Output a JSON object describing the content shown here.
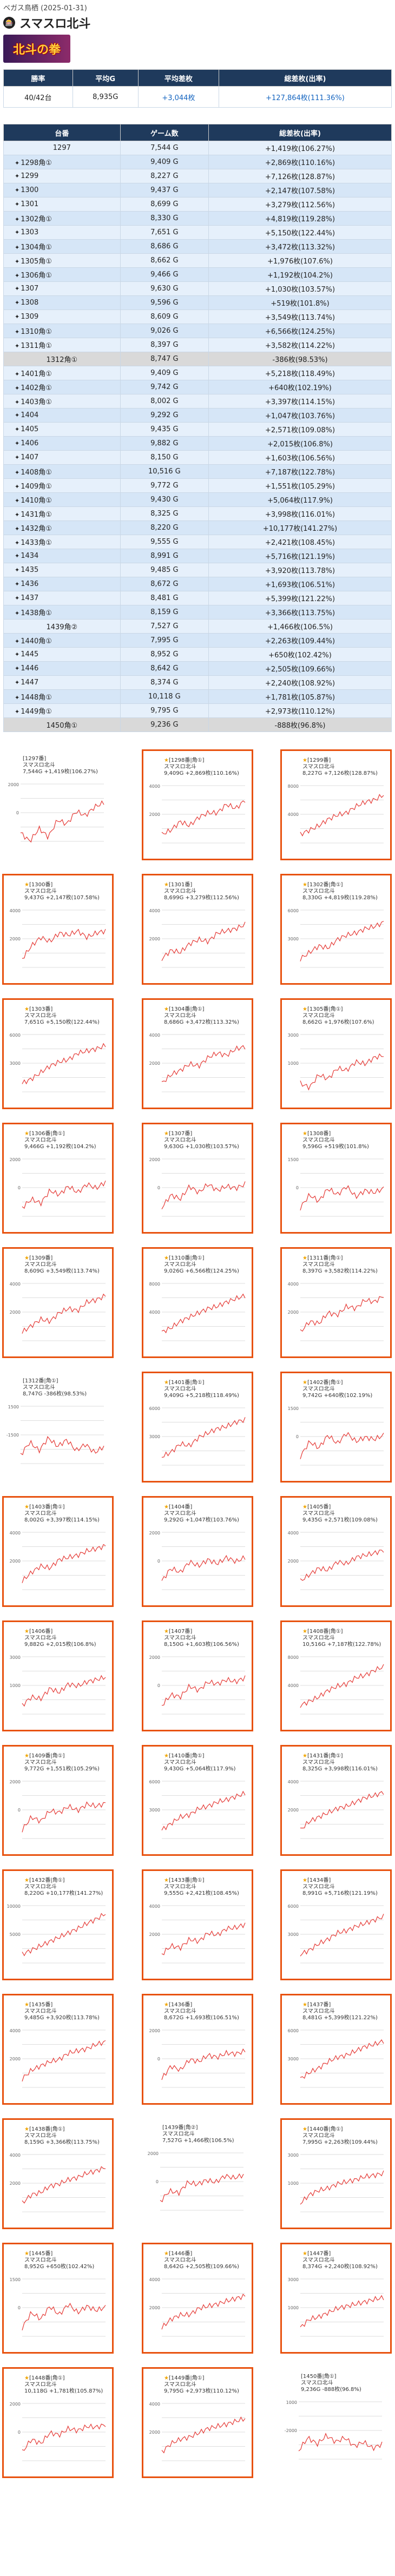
{
  "breadcrumb": "ベガス鳥栖 (2025-01-31)",
  "title_icon": "🎰",
  "title": "スマスロ北斗",
  "banner_text": "北斗の拳",
  "summary": {
    "headers": [
      "勝率",
      "平均G",
      "平均差枚",
      "総差枚(出率)"
    ],
    "row": [
      "40/42台",
      "8,935G",
      "+3,044枚",
      "+127,864枚(111.36%)"
    ]
  },
  "table": {
    "headers": [
      "台番",
      "ゲーム数",
      "総差枚(出率)"
    ],
    "rows": [
      [
        "1297",
        "7,544 G",
        "+1,419枚(106.27%)"
      ],
      [
        "1298角①",
        "9,409 G",
        "+2,869枚(110.16%)"
      ],
      [
        "1299",
        "8,227 G",
        "+7,126枚(128.87%)"
      ],
      [
        "1300",
        "9,437 G",
        "+2,147枚(107.58%)"
      ],
      [
        "1301",
        "8,699 G",
        "+3,279枚(112.56%)"
      ],
      [
        "1302角①",
        "8,330 G",
        "+4,819枚(119.28%)"
      ],
      [
        "1303",
        "7,651 G",
        "+5,150枚(122.44%)"
      ],
      [
        "1304角①",
        "8,686 G",
        "+3,472枚(113.32%)"
      ],
      [
        "1305角①",
        "8,662 G",
        "+1,976枚(107.6%)"
      ],
      [
        "1306角①",
        "9,466 G",
        "+1,192枚(104.2%)"
      ],
      [
        "1307",
        "9,630 G",
        "+1,030枚(103.57%)"
      ],
      [
        "1308",
        "9,596 G",
        "+519枚(101.8%)"
      ],
      [
        "1309",
        "8,609 G",
        "+3,549枚(113.74%)"
      ],
      [
        "1310角①",
        "9,026 G",
        "+6,566枚(124.25%)"
      ],
      [
        "1311角①",
        "8,397 G",
        "+3,582枚(114.22%)"
      ],
      [
        "1312角①",
        "8,747 G",
        "-386枚(98.53%)"
      ],
      [
        "1401角①",
        "9,409 G",
        "+5,218枚(118.49%)"
      ],
      [
        "1402角①",
        "9,742 G",
        "+640枚(102.19%)"
      ],
      [
        "1403角①",
        "8,002 G",
        "+3,397枚(114.15%)"
      ],
      [
        "1404",
        "9,292 G",
        "+1,047枚(103.76%)"
      ],
      [
        "1405",
        "9,435 G",
        "+2,571枚(109.08%)"
      ],
      [
        "1406",
        "9,882 G",
        "+2,015枚(106.8%)"
      ],
      [
        "1407",
        "8,150 G",
        "+1,603枚(106.56%)"
      ],
      [
        "1408角①",
        "10,516 G",
        "+7,187枚(122.78%)"
      ],
      [
        "1409角①",
        "9,772 G",
        "+1,551枚(105.29%)"
      ],
      [
        "1410角①",
        "9,430 G",
        "+5,064枚(117.9%)"
      ],
      [
        "1431角①",
        "8,325 G",
        "+3,998枚(116.01%)"
      ],
      [
        "1432角①",
        "8,220 G",
        "+10,177枚(141.27%)"
      ],
      [
        "1433角①",
        "9,555 G",
        "+2,421枚(108.45%)"
      ],
      [
        "1434",
        "8,991 G",
        "+5,716枚(121.19%)"
      ],
      [
        "1435",
        "9,485 G",
        "+3,920枚(113.78%)"
      ],
      [
        "1436",
        "8,672 G",
        "+1,693枚(106.51%)"
      ],
      [
        "1437",
        "8,481 G",
        "+5,399枚(121.22%)"
      ],
      [
        "1438角①",
        "8,159 G",
        "+3,366枚(113.75%)"
      ],
      [
        "1439角②",
        "7,527 G",
        "+1,466枚(106.5%)"
      ],
      [
        "1440角①",
        "7,995 G",
        "+2,263枚(109.44%)"
      ],
      [
        "1445",
        "8,952 G",
        "+650枚(102.42%)"
      ],
      [
        "1446",
        "8,642 G",
        "+2,505枚(109.66%)"
      ],
      [
        "1447",
        "8,374 G",
        "+2,240枚(108.92%)"
      ],
      [
        "1448角①",
        "10,118 G",
        "+1,781枚(105.87%)"
      ],
      [
        "1449角①",
        "9,795 G",
        "+2,973枚(110.12%)"
      ],
      [
        "1450角①",
        "9,236 G",
        "-888枚(96.8%)"
      ]
    ]
  },
  "cards": [
    {
      "title": "[1297番]",
      "name": "スマスロ北斗",
      "stat": "7,544G +1,419枚(106.27%)",
      "ymax": "2000",
      "ymid": "0",
      "trend": [
        0,
        -0.2,
        0.1,
        -0.1,
        0.3,
        0.2,
        0.5,
        0.4,
        0.6,
        0.7
      ]
    },
    {
      "title": "[1298番|角①]",
      "name": "スマスロ北斗",
      "stat": "9,409G +2,869枚(110.16%)",
      "ymax": "4000",
      "ymid": "2000",
      "trend": [
        0,
        0.1,
        0.3,
        0.2,
        0.4,
        0.5,
        0.5,
        0.7,
        0.6,
        0.8
      ]
    },
    {
      "title": "[1299番]",
      "name": "スマスロ北斗",
      "stat": "8,227G +7,126枚(128.87%)",
      "ymax": "8000",
      "ymid": "4000",
      "trend": [
        0,
        0.1,
        0.2,
        0.35,
        0.45,
        0.5,
        0.65,
        0.75,
        0.8,
        0.92
      ]
    },
    {
      "title": "[1300番]",
      "name": "スマスロ北斗",
      "stat": "9,437G +2,147枚(107.58%)",
      "ymax": "4000",
      "ymid": "2000",
      "trend": [
        0,
        0.3,
        0.5,
        0.4,
        0.6,
        0.55,
        0.65,
        0.5,
        0.6,
        0.65
      ]
    },
    {
      "title": "[1301番]",
      "name": "スマスロ北斗",
      "stat": "8,699G +3,279枚(112.56%)",
      "ymax": "4000",
      "ymid": "2000",
      "trend": [
        0,
        0.2,
        0.15,
        0.35,
        0.45,
        0.4,
        0.6,
        0.65,
        0.7,
        0.8
      ]
    },
    {
      "title": "[1302番|角①]",
      "name": "スマスロ北斗",
      "stat": "8,330G +4,819枚(119.28%)",
      "ymax": "6000",
      "ymid": "3000",
      "trend": [
        0,
        0.15,
        0.3,
        0.25,
        0.45,
        0.55,
        0.6,
        0.7,
        0.75,
        0.85
      ]
    },
    {
      "title": "[1303番]",
      "name": "スマスロ北斗",
      "stat": "7,651G +5,150枚(122.44%)",
      "ymax": "6000",
      "ymid": "3000",
      "trend": [
        0,
        0.1,
        0.25,
        0.4,
        0.5,
        0.55,
        0.7,
        0.75,
        0.8,
        0.88
      ]
    },
    {
      "title": "[1304番|角①]",
      "name": "スマスロ北斗",
      "stat": "8,686G +3,472枚(113.32%)",
      "ymax": "4000",
      "ymid": "2000",
      "trend": [
        0,
        0.2,
        0.3,
        0.45,
        0.4,
        0.6,
        0.7,
        0.65,
        0.8,
        0.85
      ]
    },
    {
      "title": "[1305番|角①]",
      "name": "スマスロ北斗",
      "stat": "8,662G +1,976枚(107.6%)",
      "ymax": "3000",
      "ymid": "1000",
      "trend": [
        0,
        -0.1,
        0.2,
        0.1,
        0.35,
        0.3,
        0.5,
        0.45,
        0.6,
        0.65
      ]
    },
    {
      "title": "[1306番|角①]",
      "name": "スマスロ北斗",
      "stat": "9,466G +1,192枚(104.2%)",
      "ymax": "2000",
      "ymid": "0",
      "trend": [
        0,
        0.2,
        0.1,
        0.4,
        0.3,
        0.5,
        0.35,
        0.55,
        0.45,
        0.6
      ]
    },
    {
      "title": "[1307番]",
      "name": "スマスロ北斗",
      "stat": "9,630G +1,030枚(103.57%)",
      "ymax": "2000",
      "ymid": "0",
      "trend": [
        0,
        0.3,
        0.2,
        0.5,
        0.35,
        0.55,
        0.4,
        0.5,
        0.45,
        0.55
      ]
    },
    {
      "title": "[1308番]",
      "name": "スマスロ北斗",
      "stat": "9,596G +519枚(101.8%)",
      "ymax": "1500",
      "ymid": "0",
      "trend": [
        0,
        0.3,
        0.15,
        0.45,
        0.3,
        0.5,
        0.25,
        0.4,
        0.35,
        0.45
      ]
    },
    {
      "title": "[1309番]",
      "name": "スマスロ北斗",
      "stat": "8,609G +3,549枚(113.74%)",
      "ymax": "4000",
      "ymid": "2000",
      "trend": [
        0,
        0.15,
        0.3,
        0.25,
        0.45,
        0.55,
        0.5,
        0.7,
        0.75,
        0.85
      ]
    },
    {
      "title": "[1310番|角①]",
      "name": "スマスロ北斗",
      "stat": "9,026G +6,566枚(124.25%)",
      "ymax": "8000",
      "ymid": "4000",
      "trend": [
        0,
        0.1,
        0.25,
        0.35,
        0.45,
        0.55,
        0.6,
        0.7,
        0.78,
        0.85
      ]
    },
    {
      "title": "[1311番|角①]",
      "name": "スマスロ北斗",
      "stat": "8,397G +3,582枚(114.22%)",
      "ymax": "4000",
      "ymid": "2000",
      "trend": [
        0,
        0.25,
        0.2,
        0.45,
        0.4,
        0.6,
        0.55,
        0.75,
        0.7,
        0.85
      ]
    },
    {
      "title": "[1312番|角①]",
      "name": "スマスロ北斗",
      "stat": "8,747G -386枚(98.53%)",
      "ymax": "1500",
      "ymid": "-1500",
      "trend": [
        0,
        0.3,
        0.1,
        0.4,
        0.2,
        0.35,
        0.1,
        0.25,
        0.05,
        0.2
      ]
    },
    {
      "title": "[1401番|角①]",
      "name": "スマスロ北斗",
      "stat": "9,409G +5,218枚(118.49%)",
      "ymax": "6000",
      "ymid": "3000",
      "trend": [
        0,
        0.1,
        0.3,
        0.25,
        0.45,
        0.55,
        0.65,
        0.7,
        0.8,
        0.86
      ]
    },
    {
      "title": "[1402番|角①]",
      "name": "スマスロ北斗",
      "stat": "9,742G +640枚(102.19%)",
      "ymax": "1500",
      "ymid": "0",
      "trend": [
        0,
        0.35,
        0.2,
        0.5,
        0.3,
        0.55,
        0.35,
        0.45,
        0.4,
        0.5
      ]
    },
    {
      "title": "[1403番|角①]",
      "name": "スマスロ北斗",
      "stat": "8,002G +3,397枚(114.15%)",
      "ymax": "4000",
      "ymid": "2000",
      "trend": [
        0,
        0.2,
        0.35,
        0.3,
        0.5,
        0.55,
        0.6,
        0.7,
        0.75,
        0.82
      ]
    },
    {
      "title": "[1404番]",
      "name": "スマスロ北斗",
      "stat": "9,292G +1,047枚(103.76%)",
      "ymax": "2000",
      "ymid": "0",
      "trend": [
        0,
        0.3,
        0.2,
        0.45,
        0.35,
        0.5,
        0.4,
        0.55,
        0.45,
        0.55
      ]
    },
    {
      "title": "[1405番]",
      "name": "スマスロ北斗",
      "stat": "9,435G +2,571枚(109.08%)",
      "ymax": "4000",
      "ymid": "2000",
      "trend": [
        0,
        0.15,
        0.3,
        0.25,
        0.45,
        0.4,
        0.55,
        0.6,
        0.65,
        0.72
      ]
    },
    {
      "title": "[1406番]",
      "name": "スマスロ北斗",
      "stat": "9,882G +2,015枚(106.8%)",
      "ymax": "3000",
      "ymid": "1000",
      "trend": [
        0,
        0.2,
        0.15,
        0.4,
        0.3,
        0.5,
        0.45,
        0.55,
        0.6,
        0.66
      ]
    },
    {
      "title": "[1407番]",
      "name": "スマスロ北斗",
      "stat": "8,150G +1,603枚(106.56%)",
      "ymax": "2000",
      "ymid": "0",
      "trend": [
        0,
        0.25,
        0.2,
        0.45,
        0.35,
        0.55,
        0.5,
        0.6,
        0.55,
        0.65
      ]
    },
    {
      "title": "[1408番|角①]",
      "name": "スマスロ北斗",
      "stat": "10,516G +7,187枚(122.78%)",
      "ymax": "8000",
      "ymid": "4000",
      "trend": [
        0,
        0.1,
        0.2,
        0.35,
        0.45,
        0.5,
        0.65,
        0.7,
        0.82,
        0.9
      ]
    },
    {
      "title": "[1409番|角①]",
      "name": "スマスロ北斗",
      "stat": "9,772G +1,551枚(105.29%)",
      "ymax": "2000",
      "ymid": "0",
      "trend": [
        0,
        0.3,
        0.2,
        0.45,
        0.4,
        0.55,
        0.45,
        0.6,
        0.55,
        0.62
      ]
    },
    {
      "title": "[1410番|角①]",
      "name": "スマスロ北斗",
      "stat": "9,430G +5,064枚(117.9%)",
      "ymax": "6000",
      "ymid": "3000",
      "trend": [
        0,
        0.15,
        0.3,
        0.35,
        0.5,
        0.55,
        0.65,
        0.7,
        0.78,
        0.85
      ]
    },
    {
      "title": "[1431番|角①]",
      "name": "スマスロ北斗",
      "stat": "8,325G +3,998枚(116.01%)",
      "ymax": "4000",
      "ymid": "2000",
      "trend": [
        0,
        0.2,
        0.3,
        0.4,
        0.5,
        0.55,
        0.65,
        0.75,
        0.8,
        0.88
      ]
    },
    {
      "title": "[1432番|角①]",
      "name": "スマスロ北斗",
      "stat": "8,220G +10,177枚(141.27%)",
      "ymax": "10000",
      "ymid": "5000",
      "trend": [
        0,
        0.1,
        0.2,
        0.3,
        0.4,
        0.5,
        0.6,
        0.72,
        0.82,
        0.95
      ]
    },
    {
      "title": "[1433番|角①]",
      "name": "スマスロ北斗",
      "stat": "9,555G +2,421枚(108.45%)",
      "ymax": "4000",
      "ymid": "2000",
      "trend": [
        0,
        0.2,
        0.15,
        0.35,
        0.3,
        0.5,
        0.45,
        0.6,
        0.62,
        0.7
      ]
    },
    {
      "title": "[1434番]",
      "name": "スマスロ北斗",
      "stat": "8,991G +5,716枚(121.19%)",
      "ymax": "6000",
      "ymid": "3000",
      "trend": [
        0,
        0.1,
        0.25,
        0.35,
        0.5,
        0.55,
        0.65,
        0.72,
        0.8,
        0.88
      ]
    },
    {
      "title": "[1435番]",
      "name": "スマスロ北斗",
      "stat": "9,485G +3,920枚(113.78%)",
      "ymax": "4000",
      "ymid": "2000",
      "trend": [
        0,
        0.2,
        0.3,
        0.4,
        0.45,
        0.6,
        0.65,
        0.7,
        0.8,
        0.86
      ]
    },
    {
      "title": "[1436番]",
      "name": "スマスロ北斗",
      "stat": "8,672G +1,693枚(106.51%)",
      "ymax": "2000",
      "ymid": "0",
      "trend": [
        0,
        0.3,
        0.2,
        0.45,
        0.4,
        0.55,
        0.5,
        0.6,
        0.58,
        0.65
      ]
    },
    {
      "title": "[1437番]",
      "name": "スマスロ北斗",
      "stat": "8,481G +5,399枚(121.22%)",
      "ymax": "6000",
      "ymid": "3000",
      "trend": [
        0,
        0.15,
        0.25,
        0.4,
        0.5,
        0.55,
        0.65,
        0.75,
        0.8,
        0.88
      ]
    },
    {
      "title": "[1438番|角①]",
      "name": "スマスロ北斗",
      "stat": "8,159G +3,366枚(113.75%)",
      "ymax": "4000",
      "ymid": "2000",
      "trend": [
        0,
        0.2,
        0.25,
        0.4,
        0.45,
        0.55,
        0.6,
        0.7,
        0.75,
        0.84
      ]
    },
    {
      "title": "[1439番|角②]",
      "name": "スマスロ北斗",
      "stat": "7,527G +1,466枚(106.5%)",
      "ymax": "2000",
      "ymid": "0",
      "trend": [
        0,
        0.25,
        0.2,
        0.45,
        0.4,
        0.5,
        0.45,
        0.6,
        0.55,
        0.62
      ]
    },
    {
      "title": "[1440番|角①]",
      "name": "スマスロ北斗",
      "stat": "7,995G +2,263枚(109.44%)",
      "ymax": "3000",
      "ymid": "1000",
      "trend": [
        0,
        0.2,
        0.3,
        0.35,
        0.45,
        0.5,
        0.55,
        0.62,
        0.65,
        0.7
      ]
    },
    {
      "title": "[1445番]",
      "name": "スマスロ北斗",
      "stat": "8,952G +650枚(102.42%)",
      "ymax": "1500",
      "ymid": "0",
      "trend": [
        0,
        0.35,
        0.2,
        0.5,
        0.3,
        0.55,
        0.35,
        0.5,
        0.4,
        0.48
      ]
    },
    {
      "title": "[1446番]",
      "name": "スマスロ北斗",
      "stat": "8,642G +2,505枚(109.66%)",
      "ymax": "4000",
      "ymid": "2000",
      "trend": [
        0,
        0.2,
        0.3,
        0.3,
        0.45,
        0.5,
        0.55,
        0.62,
        0.68,
        0.74
      ]
    },
    {
      "title": "[1447番]",
      "name": "スマスロ北斗",
      "stat": "8,374G +2,240枚(108.92%)",
      "ymax": "3000",
      "ymid": "1000",
      "trend": [
        0,
        0.2,
        0.25,
        0.35,
        0.45,
        0.5,
        0.55,
        0.6,
        0.66,
        0.7
      ]
    },
    {
      "title": "[1448番|角①]",
      "name": "スマスロ北斗",
      "stat": "10,118G +1,781枚(105.87%)",
      "ymax": "2000",
      "ymid": "0",
      "trend": [
        0,
        0.3,
        0.2,
        0.45,
        0.4,
        0.55,
        0.5,
        0.6,
        0.58,
        0.64
      ]
    },
    {
      "title": "[1449番|角①]",
      "name": "スマスロ北斗",
      "stat": "9,795G +2,973枚(110.12%)",
      "ymax": "4000",
      "ymid": "2000",
      "trend": [
        0,
        0.2,
        0.3,
        0.35,
        0.45,
        0.55,
        0.6,
        0.65,
        0.72,
        0.78
      ]
    },
    {
      "title": "[1450番|角①]",
      "name": "スマスロ北斗",
      "stat": "9,236G -888枚(96.8%)",
      "ymax": "1000",
      "ymid": "-2000",
      "trend": [
        0,
        0.3,
        0.15,
        0.35,
        0.2,
        0.3,
        0.1,
        0.2,
        0.05,
        0.15
      ]
    }
  ]
}
